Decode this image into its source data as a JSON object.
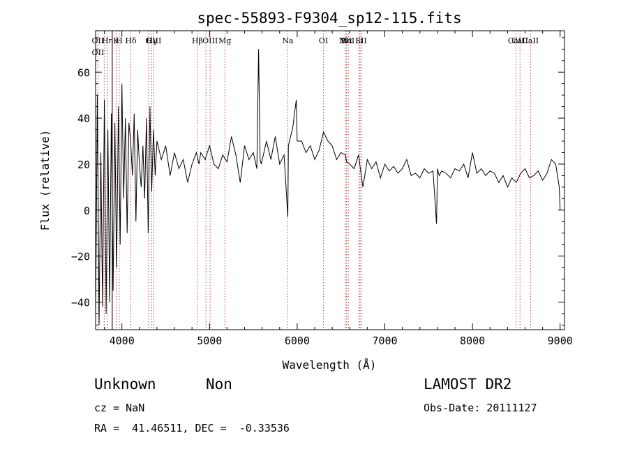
{
  "chart_data": {
    "type": "line",
    "title": "spec-55893-F9304_sp12-115.fits",
    "xlabel": "Wavelength (Å)",
    "ylabel": "Flux (relative)",
    "xlim": [
      3700,
      9050
    ],
    "ylim": [
      -52,
      78
    ],
    "xticks": [
      4000,
      5000,
      6000,
      7000,
      8000,
      9000
    ],
    "yticks": [
      -40,
      -20,
      0,
      20,
      40,
      60
    ],
    "grid": false,
    "series": [
      {
        "x": [
          3700,
          3720,
          3740,
          3760,
          3780,
          3800,
          3820,
          3840,
          3860,
          3880,
          3900,
          3920,
          3940,
          3960,
          3980,
          4000,
          4020,
          4040,
          4060,
          4080,
          4100,
          4120,
          4140,
          4160,
          4180,
          4200,
          4220,
          4240,
          4260,
          4280,
          4300,
          4320,
          4340,
          4360,
          4380,
          4400,
          4450,
          4500,
          4550,
          4600,
          4650,
          4700,
          4750,
          4800,
          4850,
          4880,
          4900,
          4950,
          5000,
          5050,
          5100,
          5150,
          5200,
          5250,
          5300,
          5350,
          5400,
          5450,
          5500,
          5540,
          5560,
          5577,
          5590,
          5620,
          5650,
          5700,
          5750,
          5800,
          5850,
          5893,
          5900,
          5950,
          5990,
          6000,
          6050,
          6100,
          6150,
          6200,
          6250,
          6300,
          6350,
          6400,
          6450,
          6500,
          6550,
          6563,
          6600,
          6650,
          6700,
          6750,
          6800,
          6850,
          6900,
          6950,
          7000,
          7050,
          7100,
          7150,
          7200,
          7250,
          7300,
          7350,
          7400,
          7450,
          7500,
          7550,
          7590,
          7600,
          7620,
          7650,
          7700,
          7750,
          7800,
          7850,
          7900,
          7950,
          8000,
          8050,
          8100,
          8150,
          8200,
          8250,
          8300,
          8350,
          8400,
          8450,
          8500,
          8550,
          8600,
          8650,
          8700,
          8750,
          8800,
          8850,
          8900,
          8950,
          8990,
          9000
        ],
        "y": [
          -48,
          50,
          -50,
          25,
          -42,
          48,
          -45,
          35,
          -40,
          42,
          -35,
          38,
          -25,
          45,
          -15,
          55,
          5,
          40,
          -10,
          38,
          30,
          15,
          42,
          -5,
          35,
          20,
          10,
          28,
          5,
          40,
          -10,
          45,
          8,
          35,
          15,
          30,
          22,
          28,
          15,
          25,
          18,
          22,
          12,
          20,
          25,
          20,
          25,
          22,
          28,
          20,
          18,
          24,
          21,
          32,
          24,
          12,
          28,
          22,
          25,
          18,
          70,
          22,
          20,
          25,
          30,
          22,
          32,
          20,
          24,
          -3,
          28,
          36,
          48,
          30,
          30,
          25,
          28,
          22,
          26,
          34,
          30,
          28,
          22,
          25,
          24,
          21,
          20,
          18,
          24,
          10,
          22,
          18,
          21,
          14,
          20,
          17,
          19,
          16,
          18,
          22,
          15,
          16,
          14,
          18,
          16,
          17,
          -6,
          18,
          15,
          17,
          16,
          14,
          18,
          17,
          20,
          14,
          25,
          16,
          18,
          15,
          17,
          16,
          12,
          15,
          10,
          14,
          12,
          16,
          18,
          14,
          15,
          17,
          13,
          16,
          22,
          20,
          10,
          0
        ]
      }
    ],
    "lines": [
      {
        "x": 3727,
        "labels": [
          "OII",
          "OII"
        ]
      },
      {
        "x": 3798,
        "labels": []
      },
      {
        "x": 3835,
        "labels": [
          "Hη"
        ]
      },
      {
        "x": 3889,
        "labels": []
      },
      {
        "x": 3934,
        "labels": [
          "K"
        ]
      },
      {
        "x": 3970,
        "labels": [
          "H"
        ]
      },
      {
        "x": 4102,
        "labels": [
          "Hδ"
        ]
      },
      {
        "x": 4304,
        "labels": [
          "G"
        ]
      },
      {
        "x": 4340,
        "labels": [
          "Hγ"
        ]
      },
      {
        "x": 4363,
        "labels": [
          "OIII"
        ]
      },
      {
        "x": 4861,
        "labels": [
          "Hβ"
        ]
      },
      {
        "x": 4959,
        "labels": []
      },
      {
        "x": 5007,
        "labels": [
          "OIII"
        ]
      },
      {
        "x": 5175,
        "labels": [
          "Mg"
        ]
      },
      {
        "x": 5893,
        "labels": [
          "Na"
        ]
      },
      {
        "x": 6300,
        "labels": [
          "OI"
        ]
      },
      {
        "x": 6548,
        "labels": [
          "NII"
        ]
      },
      {
        "x": 6563,
        "labels": [
          "Hα"
        ]
      },
      {
        "x": 6583,
        "labels": [
          "NII"
        ]
      },
      {
        "x": 6707,
        "labels": [
          "Li"
        ]
      },
      {
        "x": 6717,
        "labels": []
      },
      {
        "x": 6731,
        "labels": [
          "SII"
        ]
      },
      {
        "x": 8498,
        "labels": [
          "CaII"
        ]
      },
      {
        "x": 8542,
        "labels": [
          "CaII"
        ]
      },
      {
        "x": 8662,
        "labels": [
          "CaII"
        ]
      }
    ],
    "solid_lines": [
      3890
    ]
  },
  "info": {
    "class": "Unknown",
    "subclass": "Non",
    "survey": "LAMOST DR2",
    "cz": "cz = NaN",
    "obs_date": "Obs-Date: 20111127",
    "radec": "RA =  41.46511, DEC =  -0.33536"
  }
}
